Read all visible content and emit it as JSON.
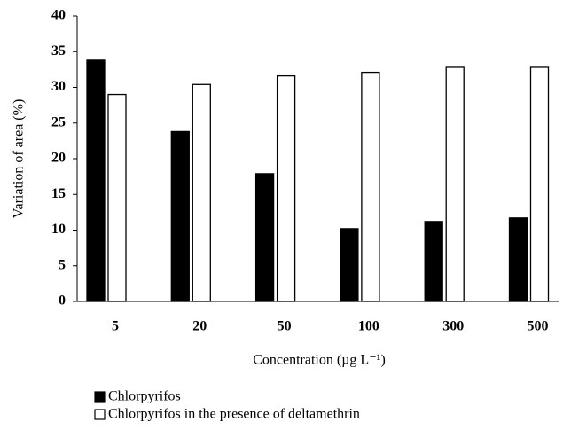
{
  "chart_data": {
    "type": "bar",
    "x_label": "Concentration (µg L⁻¹)",
    "y_label": "Variation of area (%)",
    "categories": [
      "5",
      "20",
      "50",
      "100",
      "300",
      "500"
    ],
    "series": [
      {
        "name": "Chlorpyrifos",
        "color": "#000000",
        "values": [
          33.8,
          23.8,
          17.9,
          10.2,
          11.2,
          11.7
        ]
      },
      {
        "name": "Chlorpyrifos in the presence of deltamethrin",
        "color": "#ffffff",
        "values": [
          29.0,
          30.4,
          31.6,
          32.1,
          32.8,
          32.8
        ]
      }
    ],
    "ylim": [
      0,
      40
    ],
    "yticks": [
      0,
      5,
      10,
      15,
      20,
      25,
      30,
      35,
      40
    ],
    "grid": false,
    "legend": "bottom-left"
  }
}
